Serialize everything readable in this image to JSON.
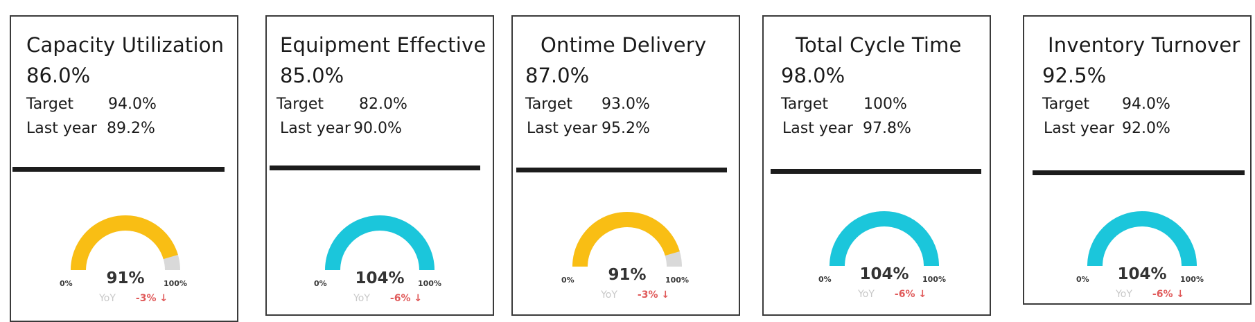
{
  "cards": [
    {
      "title": "Capacity Utilization",
      "value": "86.0%",
      "target_label": "Target",
      "target_value": "94.0%",
      "lastyear_label": "Last year",
      "lastyear_value": "89.2%",
      "gauge": {
        "percent_label": "91%",
        "fill_fraction": 0.91,
        "min_label": "0%",
        "max_label": "100%",
        "yoy_label": "YoY",
        "delta_label": "-3% ↓",
        "color": "#F9BE14"
      }
    },
    {
      "title": "Equipment Effective",
      "value": "85.0%",
      "target_label": "Target",
      "target_value": "82.0%",
      "lastyear_label": "Last year",
      "lastyear_value": "90.0%",
      "gauge": {
        "percent_label": "104%",
        "fill_fraction": 1.0,
        "min_label": "0%",
        "max_label": "100%",
        "yoy_label": "YoY",
        "delta_label": "-6% ↓",
        "color": "#1BC6DB"
      }
    },
    {
      "title": "Ontime Delivery",
      "value": "87.0%",
      "target_label": "Target",
      "target_value": "93.0%",
      "lastyear_label": "Last year",
      "lastyear_value": "95.2%",
      "gauge": {
        "percent_label": "91%",
        "fill_fraction": 0.91,
        "min_label": "0%",
        "max_label": "100%",
        "yoy_label": "YoY",
        "delta_label": "-3% ↓",
        "color": "#F9BE14"
      }
    },
    {
      "title": "Total Cycle Time",
      "value": "98.0%",
      "target_label": "Target",
      "target_value": "100%",
      "lastyear_label": "Last year",
      "lastyear_value": "97.8%",
      "gauge": {
        "percent_label": "104%",
        "fill_fraction": 1.0,
        "min_label": "0%",
        "max_label": "100%",
        "yoy_label": "YoY",
        "delta_label": "-6% ↓",
        "color": "#1BC6DB"
      }
    },
    {
      "title": "Inventory Turnover",
      "value": "92.5%",
      "target_label": "Target",
      "target_value": "94.0%",
      "lastyear_label": "Last year",
      "lastyear_value": "92.0%",
      "gauge": {
        "percent_label": "104%",
        "fill_fraction": 1.0,
        "min_label": "0%",
        "max_label": "100%",
        "yoy_label": "YoY",
        "delta_label": "-6% ↓",
        "color": "#1BC6DB"
      }
    }
  ],
  "colors": {
    "gauge_track": "#D9D9D9",
    "delta_negative": "#E05A5A",
    "yoy_text": "#C8C8C8"
  }
}
